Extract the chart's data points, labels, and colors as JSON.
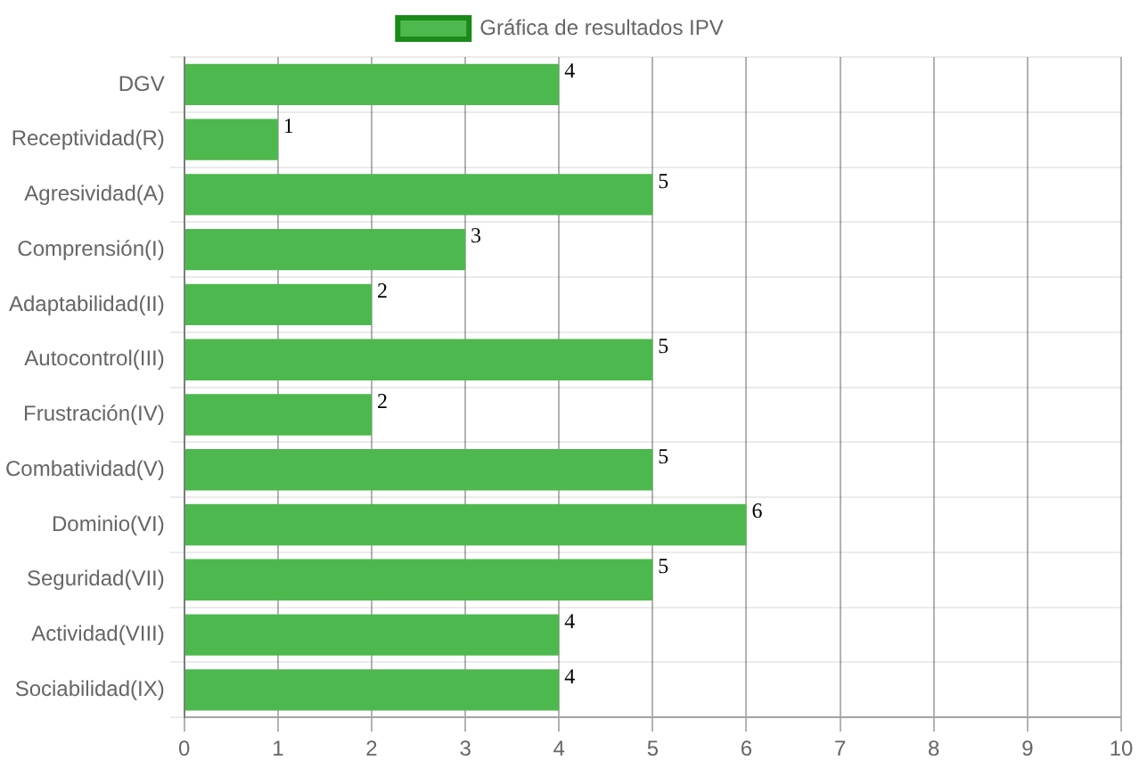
{
  "chart_data": {
    "type": "bar",
    "orientation": "horizontal",
    "categories": [
      "DGV",
      "Receptividad(R)",
      "Agresividad(A)",
      "Comprensión(I)",
      "Adaptabilidad(II)",
      "Autocontrol(III)",
      "Frustración(IV)",
      "Combatividad(V)",
      "Dominio(VI)",
      "Seguridad(VII)",
      "Actividad(VIII)",
      "Sociabilidad(IX)"
    ],
    "series": [
      {
        "name": "Gráfica de resultados IPV",
        "color": "#4db84d",
        "values": [
          4,
          1,
          5,
          3,
          2,
          5,
          2,
          5,
          6,
          5,
          4,
          4
        ]
      }
    ],
    "xlim": [
      0,
      10
    ],
    "xticks": [
      0,
      1,
      2,
      3,
      4,
      5,
      6,
      7,
      8,
      9,
      10
    ],
    "grid": true,
    "legend": "top",
    "data_labels": true
  }
}
